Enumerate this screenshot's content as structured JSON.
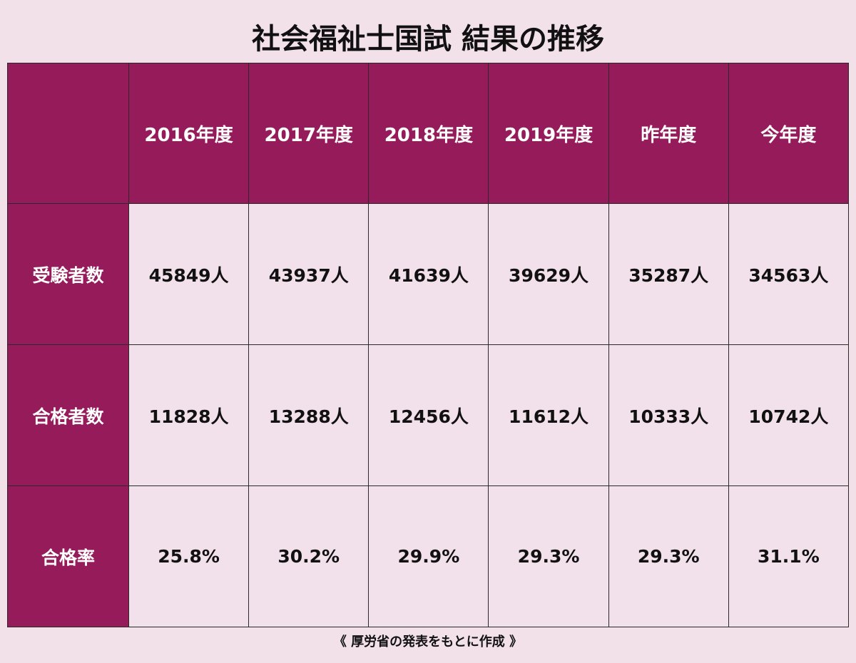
{
  "header": {
    "title": "社会福祉士国試 結果の推移"
  },
  "table": {
    "columns": [
      "2016年度",
      "2017年度",
      "2018年度",
      "2019年度",
      "昨年度",
      "今年度"
    ],
    "rows": [
      {
        "label": "受験者数",
        "cells": [
          "45849人",
          "43937人",
          "41639人",
          "39629人",
          "35287人",
          "34563人"
        ]
      },
      {
        "label": "合格者数",
        "cells": [
          "11828人",
          "13288人",
          "12456人",
          "11612人",
          "10333人",
          "10742人"
        ]
      },
      {
        "label": "合格率",
        "cells": [
          "25.8%",
          "30.2%",
          "29.9%",
          "29.3%",
          "29.3%",
          "31.1%"
        ]
      }
    ]
  },
  "footer": {
    "note": "《 厚労省の発表をもとに作成 》"
  }
}
